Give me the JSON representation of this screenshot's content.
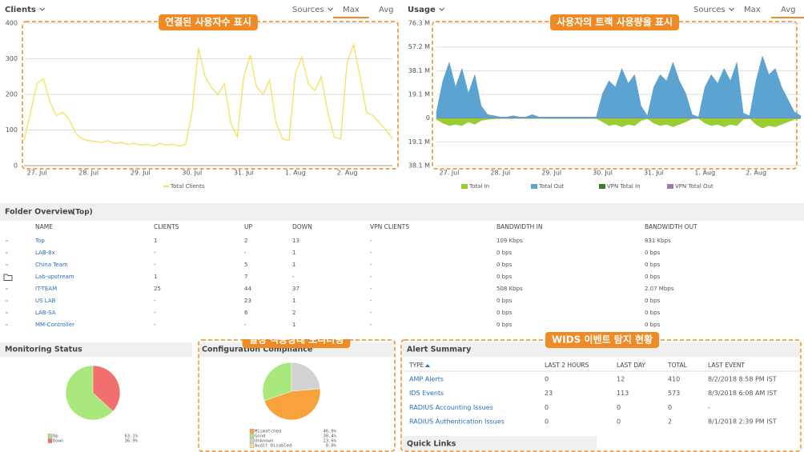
{
  "chart_data": [
    {
      "type": "line",
      "title": "Clients",
      "controls": [
        "Sources",
        "Max",
        "Avg"
      ],
      "selected_control": 1,
      "annotation": "연결된 사용자수 표시",
      "categories": [
        null,
        null,
        "27. Jul",
        null,
        null,
        null,
        null,
        null,
        null,
        null,
        "28. Jul",
        null,
        null,
        null,
        null,
        null,
        null,
        null,
        "29. Jul",
        null,
        null,
        null,
        null,
        null,
        null,
        null,
        "30. Jul",
        null,
        null,
        null,
        null,
        null,
        null,
        null,
        "31. Jul",
        null,
        null,
        null,
        null,
        null,
        null,
        null,
        "1. Aug",
        null,
        null,
        null,
        null,
        null,
        null,
        null,
        "2. Aug",
        null,
        null,
        null,
        null,
        null,
        null,
        null
      ],
      "ylim": [
        0,
        400
      ],
      "yticks": [
        0,
        100,
        200,
        300,
        400
      ],
      "grid": true,
      "series": [
        {
          "name": "Total Clients",
          "color": "#f2e25a",
          "values": [
            70,
            150,
            230,
            245,
            180,
            140,
            150,
            130,
            90,
            75,
            70,
            68,
            65,
            70,
            62,
            65,
            60,
            62,
            58,
            60,
            55,
            62,
            58,
            60,
            55,
            60,
            150,
            330,
            250,
            220,
            200,
            230,
            120,
            80,
            250,
            310,
            220,
            200,
            240,
            120,
            75,
            70,
            260,
            305,
            230,
            210,
            250,
            150,
            80,
            75,
            290,
            340,
            250,
            150,
            140,
            120,
            100,
            75
          ]
        }
      ]
    },
    {
      "type": "area",
      "title": "Usage",
      "controls": [
        "Sources",
        "Max",
        "Avg"
      ],
      "selected_control": 2,
      "annotation": "사용자의 트랙 사용량을 표시",
      "categories": [
        null,
        null,
        "27. Jul",
        null,
        null,
        null,
        null,
        null,
        null,
        null,
        "28. Jul",
        null,
        null,
        null,
        null,
        null,
        null,
        null,
        "29. Jul",
        null,
        null,
        null,
        null,
        null,
        null,
        null,
        "30. Jul",
        null,
        null,
        null,
        null,
        null,
        null,
        null,
        "31. Jul",
        null,
        null,
        null,
        null,
        null,
        null,
        null,
        "1. Aug",
        null,
        null,
        null,
        null,
        null,
        null,
        null,
        "2. Aug",
        null,
        null,
        null,
        null,
        null,
        null,
        null
      ],
      "ylim": [
        -38.1,
        76.3
      ],
      "yticks": [
        {
          "value": 76.3,
          "label": "76.3 M"
        },
        {
          "value": 57.2,
          "label": "57.2 M"
        },
        {
          "value": 38.1,
          "label": "38.1 M"
        },
        {
          "value": 19.1,
          "label": "19.1 M"
        },
        0,
        {
          "value": -19.1,
          "label": "19.1 M"
        },
        {
          "value": -38.1,
          "label": "38.1 M"
        }
      ],
      "grid": true,
      "series": [
        {
          "name": "Total In",
          "color": "#9acd32",
          "values": [
            -1,
            -4,
            -6,
            -5,
            -6,
            -3,
            -5,
            -2,
            -1,
            -0.5,
            -0.3,
            -0.3,
            -0.3,
            -0.3,
            -0.3,
            -0.3,
            -0.3,
            -0.3,
            -0.3,
            -0.3,
            -0.3,
            -0.3,
            -0.3,
            -0.3,
            -0.3,
            -0.3,
            -3,
            -6,
            -5,
            -7,
            -5,
            -6,
            -2,
            -0.5,
            -4,
            -6,
            -5,
            -7,
            -5,
            -3,
            -0.5,
            -0.3,
            -4,
            -6,
            -5,
            -7,
            -5,
            -6,
            -1,
            -0.3,
            -5,
            -8,
            -6,
            -7,
            -5,
            -3,
            -1,
            -0.3
          ]
        },
        {
          "name": "Total Out",
          "color": "#5ba3d0",
          "values": [
            5,
            30,
            45,
            25,
            40,
            20,
            35,
            10,
            3,
            2,
            1,
            1,
            2,
            1,
            1,
            3,
            1,
            1,
            1,
            1,
            1,
            1,
            1,
            1,
            1,
            1,
            20,
            30,
            25,
            40,
            28,
            35,
            10,
            2,
            25,
            35,
            30,
            45,
            30,
            20,
            3,
            1,
            25,
            35,
            28,
            40,
            30,
            45,
            4,
            2,
            30,
            50,
            35,
            40,
            25,
            15,
            5,
            2
          ]
        },
        {
          "name": "VPN Total In",
          "color": "#3a7d2a",
          "values": [
            0,
            0,
            0,
            0,
            0,
            0,
            0,
            0,
            0,
            0,
            0,
            0,
            0,
            0,
            0,
            0,
            0,
            0,
            0,
            0,
            0,
            0,
            0,
            0,
            0,
            0,
            0,
            0,
            0,
            0,
            0,
            0,
            0,
            0,
            0,
            0,
            0,
            0,
            0,
            0,
            0,
            0,
            0,
            0,
            0,
            0,
            0,
            0,
            0,
            0,
            0,
            0,
            0,
            0,
            0,
            0,
            0,
            0
          ]
        },
        {
          "name": "VPN Total Out",
          "color": "#9b7bb0",
          "values": [
            0,
            0,
            0,
            0,
            0,
            0,
            0,
            0,
            0,
            0,
            0,
            0,
            0,
            0,
            0,
            0,
            0,
            0,
            0,
            0,
            0,
            0,
            0,
            0,
            0,
            0,
            0,
            0,
            0,
            0,
            0,
            0,
            0,
            0,
            0,
            0,
            0,
            0,
            0,
            0,
            0,
            0,
            0,
            0,
            0,
            0,
            0,
            0,
            0,
            0,
            0,
            0,
            0,
            0,
            0,
            0,
            0,
            0
          ]
        }
      ]
    },
    {
      "type": "pie",
      "title": "Monitoring Status",
      "categories": [
        "Up",
        "Down"
      ],
      "values": [
        63.1,
        36.9
      ],
      "value_labels": [
        "63.1%",
        "36.9%"
      ],
      "colors": [
        "#a8e87c",
        "#f26f6f"
      ]
    },
    {
      "type": "pie",
      "title": "Configuration Compliance",
      "annotation": "설정 적용상태 모니터링",
      "categories": [
        "Mismatched",
        "Good",
        "Unknown",
        "Audit Disabled"
      ],
      "values": [
        46.0,
        30.4,
        23.6,
        0.0
      ],
      "value_labels": [
        "46.0%",
        "30.4%",
        "23.6%",
        "0.0%"
      ],
      "colors": [
        "#f7a23a",
        "#a8e87c",
        "#d2d2d2",
        "#f3e48a"
      ]
    }
  ],
  "folder_overview": {
    "title": "Folder Overview",
    "scope": "(Top)",
    "columns": [
      "NAME",
      "CLIENTS",
      "UP",
      "DOWN",
      "VPN CLIENTS",
      "BANDWIDTH IN",
      "BANDWIDTH OUT"
    ],
    "rows": [
      [
        "Top",
        "1",
        "2",
        "13",
        "-",
        "109 Kbps",
        "831 Kbps"
      ],
      [
        "LAB-8x",
        "-",
        "-",
        "1",
        "-",
        "0 bps",
        "0 bps"
      ],
      [
        "China Team",
        "-",
        "5",
        "1",
        "-",
        "0 bps",
        "0 bps"
      ],
      [
        "Lab-upstream",
        "1",
        "7",
        "-",
        "-",
        "0 bps",
        "0 bps"
      ],
      [
        "IT-TEAM",
        "25",
        "44",
        "37",
        "-",
        "508 Kbps",
        "2.07 Mbps"
      ],
      [
        "US LAB",
        "-",
        "23",
        "1",
        "-",
        "0 bps",
        "0 bps"
      ],
      [
        "LAB-SA",
        "-",
        "6",
        "2",
        "-",
        "0 bps",
        "0 bps"
      ],
      [
        "MM-Controller",
        "-",
        "-",
        "1",
        "-",
        "0 bps",
        "0 bps"
      ]
    ]
  },
  "alert_summary": {
    "title": "Alert Summary",
    "annotation": "WIDS 이벤트 탐지 현황",
    "columns": [
      "TYPE",
      "LAST 2 HOURS",
      "LAST DAY",
      "TOTAL",
      "LAST EVENT"
    ],
    "rows": [
      [
        "AMP Alerts",
        "0",
        "12",
        "410",
        "8/2/2018 8:58 PM IST"
      ],
      [
        "IDS Events",
        "23",
        "113",
        "573",
        "8/3/2018 6:08 AM IST"
      ],
      [
        "RADIUS Accounting Issues",
        "0",
        "0",
        "0",
        "-"
      ],
      [
        "RADIUS Authentication Issues",
        "0",
        "0",
        "2",
        "8/1/2018 2:39 PM IST"
      ]
    ],
    "quick_links": "Quick Links"
  }
}
